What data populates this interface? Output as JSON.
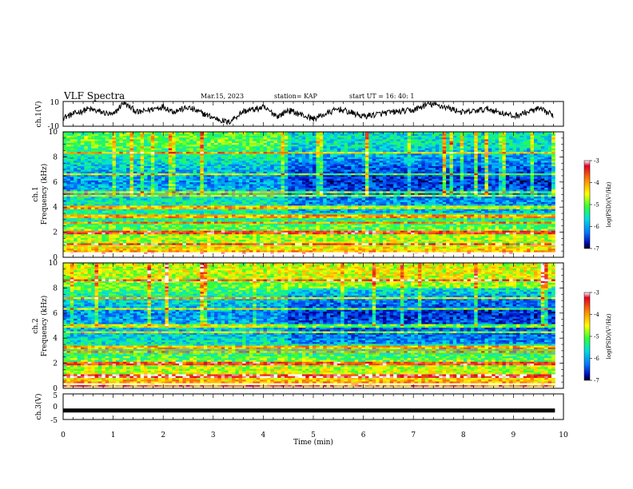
{
  "header": {
    "title": "VLF Spectra",
    "date": "Mar.15, 2023",
    "station": "station= KAP",
    "start": "start  UT =   16: 40: 1"
  },
  "chart_data": [
    {
      "type": "line",
      "name": "ch1-voltage",
      "ylabel": "ch.1(V)",
      "ylim": [
        -10,
        10
      ],
      "yticks": [
        10,
        -10
      ],
      "xlim": [
        0,
        10
      ],
      "description_points_x_min": [
        0,
        0.5,
        1,
        1.2,
        1.5,
        2,
        2.2,
        2.5,
        3,
        3.3,
        3.6,
        4,
        4.3,
        4.5,
        5,
        5.5,
        6,
        6.5,
        7,
        7.3,
        7.6,
        8,
        8.5,
        9,
        9.5,
        9.8
      ],
      "values": [
        -3,
        4,
        -1,
        9,
        1,
        6,
        2,
        5,
        -3,
        -7,
        2,
        5,
        -2,
        3,
        -4,
        4,
        -2,
        1,
        3,
        8,
        6,
        1,
        4,
        -2,
        4,
        -1
      ],
      "color": "#000000"
    },
    {
      "type": "heatmap",
      "name": "ch1-spectrogram",
      "ylabel": "Frequency  (kHz)",
      "channel_label": "ch.1",
      "ylim": [
        0,
        10
      ],
      "yticks": [
        0,
        2,
        4,
        6,
        8,
        10
      ],
      "xlim": [
        0,
        9.83
      ],
      "colorbar": {
        "label": "log(PSD)(V²/Hz)",
        "ticks": [
          -3,
          -4,
          -5,
          -6,
          -7
        ],
        "range": [
          -7,
          -3
        ]
      },
      "background_level_by_freq_khz": [
        [
          0,
          -3.6
        ],
        [
          1,
          -4.6
        ],
        [
          2,
          -4.8
        ],
        [
          3,
          -5.3
        ],
        [
          4,
          -5.4
        ],
        [
          5,
          -5.6
        ],
        [
          6,
          -6.0
        ],
        [
          7,
          -5.8
        ],
        [
          8,
          -5.4
        ],
        [
          9,
          -5.0
        ],
        [
          10,
          -5.0
        ]
      ],
      "lines_khz": [
        0.1,
        0.3,
        1.1,
        2.0,
        2.8,
        3.3,
        4.0,
        4.9,
        5.2,
        6.6,
        8.4
      ],
      "regime_change_min": 4.47
    },
    {
      "type": "heatmap",
      "name": "ch2-spectrogram",
      "ylabel": "Frequency  (kHz)",
      "channel_label": "ch.2",
      "ylim": [
        0,
        10
      ],
      "yticks": [
        0,
        2,
        4,
        6,
        8,
        10
      ],
      "xlim": [
        0,
        9.83
      ],
      "colorbar": {
        "label": "log(PSD)(V²/Hz)",
        "ticks": [
          -3,
          -4,
          -5,
          -6,
          -7
        ],
        "range": [
          -7,
          -3
        ]
      },
      "background_level_by_freq_khz": [
        [
          0,
          -3.6
        ],
        [
          1,
          -4.5
        ],
        [
          2,
          -4.8
        ],
        [
          3,
          -5.3
        ],
        [
          4,
          -5.6
        ],
        [
          5,
          -5.8
        ],
        [
          6,
          -6.0
        ],
        [
          7,
          -5.6
        ],
        [
          8,
          -5.0
        ],
        [
          9,
          -4.6
        ],
        [
          10,
          -4.6
        ]
      ],
      "lines_khz": [
        0.1,
        0.4,
        1.0,
        2.0,
        2.9,
        3.3,
        4.5,
        5.0,
        6.4,
        7.2,
        8.6
      ],
      "regime_change_min": 4.47
    },
    {
      "type": "line",
      "name": "ch3-voltage",
      "ylabel": "ch.3(V)",
      "ylim": [
        -5,
        5
      ],
      "yticks": [
        5,
        0,
        -5
      ],
      "xlim": [
        0,
        10
      ],
      "x": [
        0,
        9.83
      ],
      "values": [
        -1.5,
        -1.5
      ],
      "color": "#000000"
    }
  ],
  "xaxis": {
    "label": "Time  (min)",
    "ticks": [
      "0",
      "1",
      "2",
      "3",
      "4",
      "5",
      "6",
      "7",
      "8",
      "9",
      "10"
    ],
    "range": [
      0,
      10
    ]
  }
}
